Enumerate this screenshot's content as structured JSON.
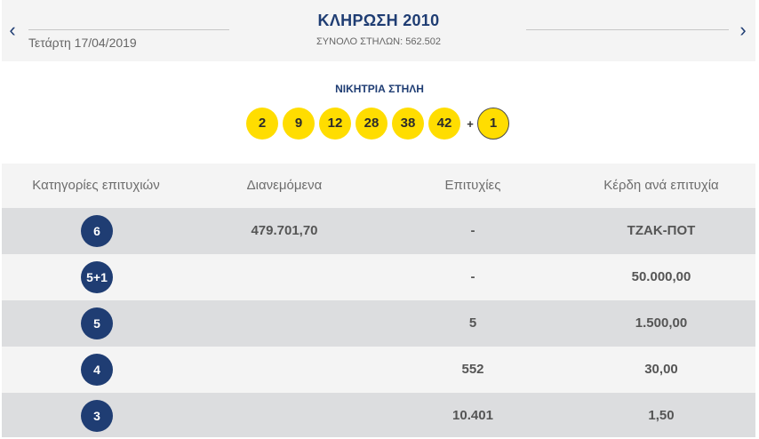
{
  "header": {
    "date": "Τετάρτη 17/04/2019",
    "title": "ΚΛΗΡΩΣΗ 2010",
    "subtitle": "ΣΥΝΟΛΟ ΣΤΗΛΩΝ: 562.502",
    "prev_icon": "chevron-left-icon",
    "next_icon": "chevron-right-icon"
  },
  "winning": {
    "label": "ΝΙΚΗΤΡΙΑ ΣΤΗΛΗ",
    "numbers": [
      "2",
      "9",
      "12",
      "28",
      "38",
      "42"
    ],
    "plus": "+",
    "bonus": "1"
  },
  "table": {
    "headers": [
      "Κατηγορίες επιτυχιών",
      "Διανεμόμενα",
      "Επιτυχίες",
      "Κέρδη ανά επιτυχία"
    ],
    "rows": [
      {
        "category": "6",
        "distributed": "479.701,70",
        "winners": "-",
        "prize": "ΤΖΑΚ-ΠΟΤ"
      },
      {
        "category": "5+1",
        "distributed": "",
        "winners": "-",
        "prize": "50.000,00"
      },
      {
        "category": "5",
        "distributed": "",
        "winners": "5",
        "prize": "1.500,00"
      },
      {
        "category": "4",
        "distributed": "",
        "winners": "552",
        "prize": "30,00"
      },
      {
        "category": "3",
        "distributed": "",
        "winners": "10.401",
        "prize": "1,50"
      }
    ]
  },
  "colors": {
    "accent": "#1f3d73",
    "ball": "#ffdd00",
    "row_dark": "#dcdddf",
    "row_light": "#f4f4f4"
  }
}
